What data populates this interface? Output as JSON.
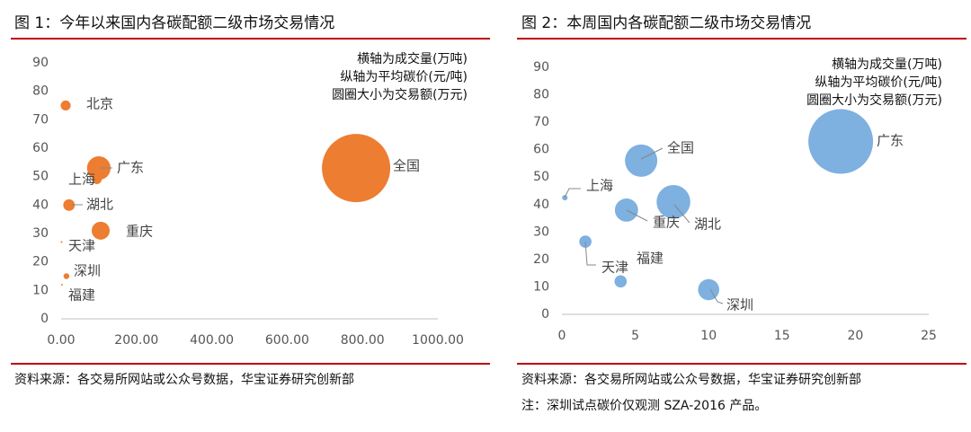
{
  "chart_data": [
    {
      "type": "bubble",
      "title": "图 1：今年以来国内各碳配额二级市场交易情况",
      "annotations": [
        "横轴为成交量(万吨)",
        "纵轴为平均碳价(元/吨)",
        "圆圈大小为交易额(万元)"
      ],
      "categories": [
        "北京",
        "广东",
        "全国",
        "上海",
        "湖北",
        "重庆",
        "天津",
        "深圳",
        "福建"
      ],
      "x": [
        12,
        100,
        783,
        95,
        21,
        105,
        1,
        14,
        2
      ],
      "values": [
        75,
        53,
        53,
        49,
        40,
        31,
        27,
        15,
        12
      ],
      "sizes": [
        900,
        5000,
        42000,
        800,
        1200,
        2900,
        30,
        300,
        20
      ],
      "color": "#ed7d31",
      "xlim": [
        0,
        1000
      ],
      "xticks": [
        {
          "value": 0,
          "label": "0.00"
        },
        {
          "value": 200,
          "label": "200.00"
        },
        {
          "value": 400,
          "label": "400.00"
        },
        {
          "value": 600,
          "label": "600.00"
        },
        {
          "value": 800,
          "label": "800.00"
        },
        {
          "value": 1000,
          "label": "1000.00"
        }
      ],
      "ylim": [
        0,
        90
      ],
      "yticks": [
        0,
        10,
        20,
        30,
        40,
        50,
        60,
        70,
        80,
        90
      ],
      "source": "资料来源：各交易所网站或公众号数据，华宝证券研究创新部"
    },
    {
      "type": "bubble",
      "title": "图 2：本周国内各碳配额二级市场交易情况",
      "annotations": [
        "横轴为成交量(万吨)",
        "纵轴为平均碳价(元/吨)",
        "圆圈大小为交易额(万元)"
      ],
      "categories": [
        "广东",
        "全国",
        "湖北",
        "重庆",
        "上海",
        "天津",
        "福建",
        "深圳"
      ],
      "x": [
        19,
        5.4,
        7.6,
        4.4,
        0.2,
        1.6,
        4.0,
        10
      ],
      "values": [
        63,
        56,
        41,
        38,
        42.5,
        26.5,
        12,
        9
      ],
      "sizes": [
        1400,
        350,
        380,
        180,
        10,
        50,
        50,
        150
      ],
      "color": "#7eb0e0",
      "xlim": [
        0,
        25
      ],
      "xticks": [
        0,
        5,
        10,
        15,
        20,
        25
      ],
      "ylim": [
        0,
        90
      ],
      "yticks": [
        0,
        10,
        20,
        30,
        40,
        50,
        60,
        70,
        80,
        90
      ],
      "source": "资料来源：各交易所网站或公众号数据，华宝证券研究创新部",
      "note": "注：深圳试点碳价仅观测 SZA-2016 产品。"
    }
  ]
}
